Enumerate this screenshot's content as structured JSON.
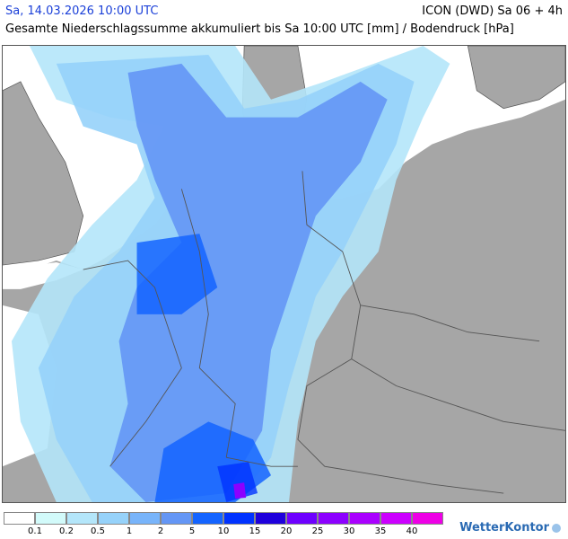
{
  "header": {
    "datetime": "Sa, 14.03.2026 10:00 UTC",
    "model": "ICON (DWD) Sa 06 + 4h",
    "description": "Gesamte Niederschlagssumme akkumuliert bis Sa 10:00 UTC [mm] / Bodendruck [hPa]"
  },
  "map": {
    "land_color": "#a6a6a6",
    "sea_color": "#ffffff",
    "border_color": "#555555",
    "region": "Central Europe – Germany and neighbouring countries"
  },
  "legend": {
    "bins": [
      {
        "label": "",
        "color": "#ffffff"
      },
      {
        "label": "0.1",
        "color": "#d2fafa"
      },
      {
        "label": "0.2",
        "color": "#b4e6fa"
      },
      {
        "label": "0.5",
        "color": "#96d2fa"
      },
      {
        "label": "1",
        "color": "#78b4fa"
      },
      {
        "label": "2",
        "color": "#6496f5"
      },
      {
        "label": "5",
        "color": "#1464ff"
      },
      {
        "label": "10",
        "color": "#0032ff"
      },
      {
        "label": "15",
        "color": "#1e00dc"
      },
      {
        "label": "20",
        "color": "#6e00ff"
      },
      {
        "label": "25",
        "color": "#8c00ff"
      },
      {
        "label": "30",
        "color": "#aa00ff"
      },
      {
        "label": "35",
        "color": "#cc00ff"
      },
      {
        "label": "40",
        "color": "#ee00e6"
      }
    ]
  },
  "brand": {
    "name": "WetterKontor"
  }
}
